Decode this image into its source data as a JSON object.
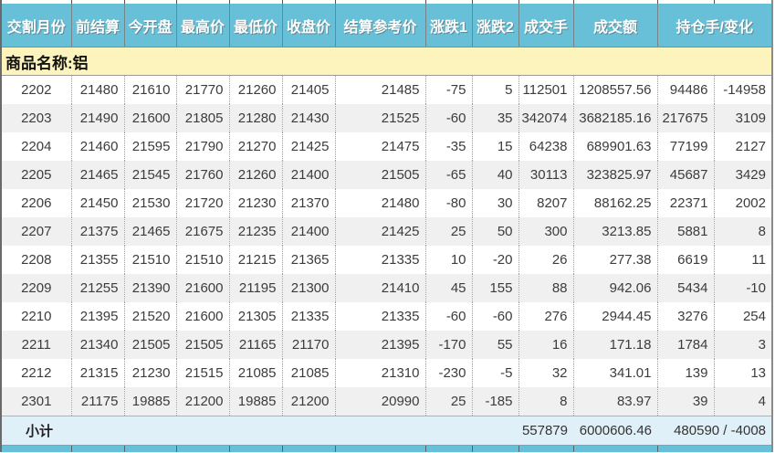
{
  "table": {
    "headers": [
      "交割月份",
      "前结算",
      "今开盘",
      "最高价",
      "最低价",
      "收盘价",
      "结算参考价",
      "涨跌1",
      "涨跌2",
      "成交手",
      "成交额",
      "持仓手/变化"
    ],
    "product_label": "商品名称:铝",
    "rows": [
      [
        "2202",
        "21480",
        "21610",
        "21770",
        "21260",
        "21405",
        "21485",
        "-75",
        "5",
        "112501",
        "1208557.56",
        "94486",
        "-14958"
      ],
      [
        "2203",
        "21490",
        "21600",
        "21805",
        "21280",
        "21430",
        "21525",
        "-60",
        "35",
        "342074",
        "3682185.16",
        "217675",
        "3109"
      ],
      [
        "2204",
        "21460",
        "21595",
        "21790",
        "21270",
        "21425",
        "21475",
        "-35",
        "15",
        "64238",
        "689901.63",
        "77199",
        "2127"
      ],
      [
        "2205",
        "21465",
        "21545",
        "21760",
        "21260",
        "21400",
        "21505",
        "-65",
        "40",
        "30113",
        "323825.97",
        "45687",
        "3429"
      ],
      [
        "2206",
        "21450",
        "21530",
        "21720",
        "21230",
        "21370",
        "21480",
        "-80",
        "30",
        "8207",
        "88162.25",
        "22371",
        "2002"
      ],
      [
        "2207",
        "21375",
        "21465",
        "21675",
        "21235",
        "21400",
        "21425",
        "25",
        "50",
        "300",
        "3213.85",
        "5881",
        "8"
      ],
      [
        "2208",
        "21355",
        "21510",
        "21510",
        "21215",
        "21365",
        "21335",
        "10",
        "-20",
        "26",
        "277.38",
        "6619",
        "11"
      ],
      [
        "2209",
        "21255",
        "21390",
        "21600",
        "21195",
        "21300",
        "21410",
        "45",
        "155",
        "88",
        "942.06",
        "5434",
        "-10"
      ],
      [
        "2210",
        "21395",
        "21520",
        "21600",
        "21305",
        "21335",
        "21335",
        "-60",
        "-60",
        "276",
        "2944.45",
        "3276",
        "254"
      ],
      [
        "2211",
        "21340",
        "21505",
        "21505",
        "21165",
        "21170",
        "21395",
        "-170",
        "55",
        "16",
        "171.18",
        "1784",
        "3"
      ],
      [
        "2212",
        "21315",
        "21230",
        "21515",
        "21085",
        "21085",
        "21310",
        "-230",
        "-5",
        "32",
        "341.01",
        "139",
        "13"
      ],
      [
        "2301",
        "21175",
        "19885",
        "21200",
        "19885",
        "21200",
        "20990",
        "25",
        "-185",
        "8",
        "83.97",
        "39",
        "4"
      ]
    ],
    "subtotal": {
      "label": "小计",
      "volume": "557879",
      "turnover": "6000606.46",
      "oi_change": "480590 / -4008"
    }
  },
  "colors": {
    "header_bg": "#67c0d8",
    "header_text": "#ffffff",
    "product_row_bg": "#fdf3bc",
    "alt_row_bg": "#f0f0f0",
    "subtotal_bg": "#e0f0f8",
    "data_text": "#3c3c3c",
    "outer_border": "#6a6a6a"
  }
}
